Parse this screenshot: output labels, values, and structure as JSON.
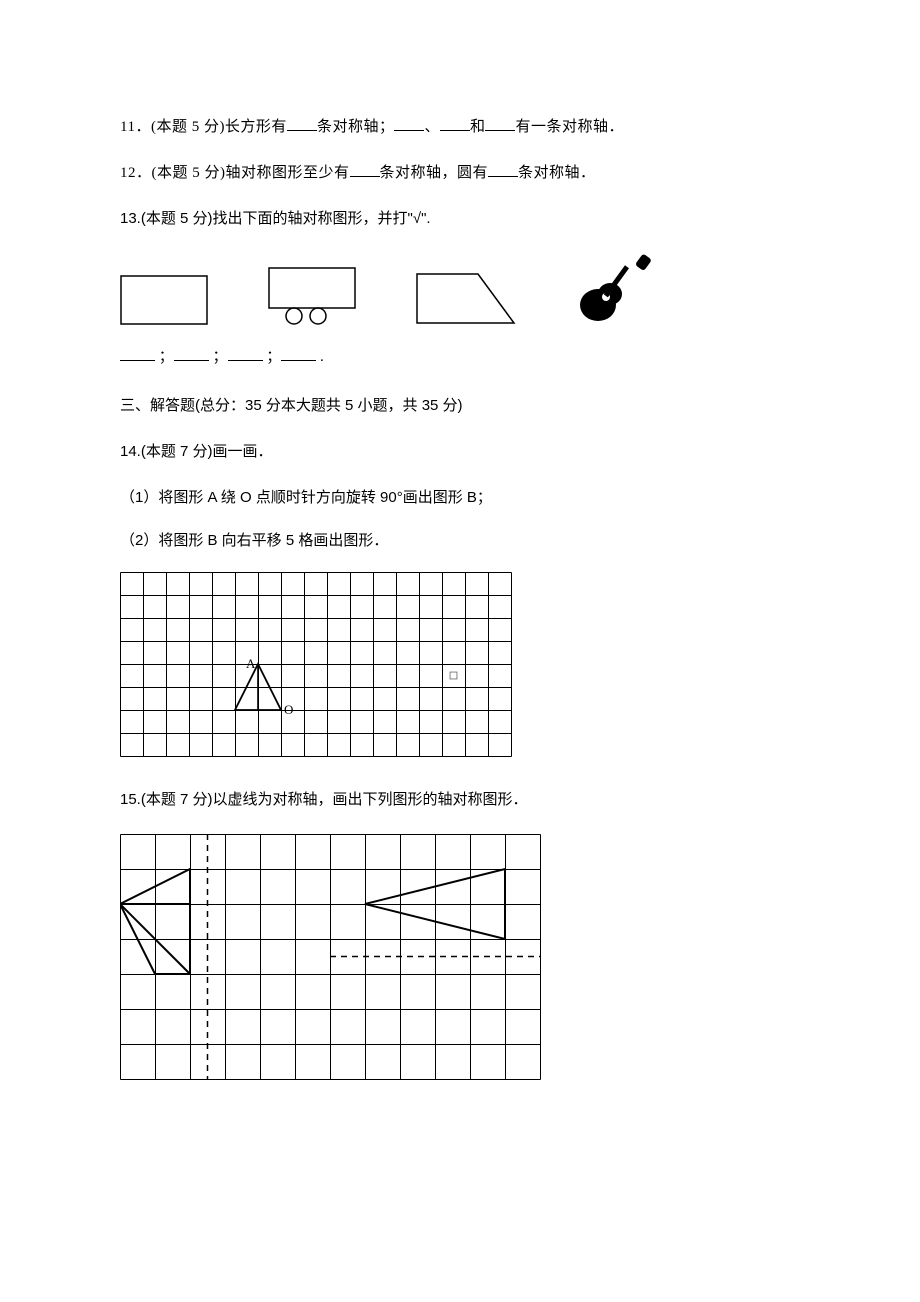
{
  "q11": {
    "prefix": "11．(本题 5 分)长方形有",
    "mid1": "条对称轴；",
    "mid2": "、",
    "mid3": "和",
    "suffix": "有一条对称轴．"
  },
  "q12": {
    "prefix": "12．(本题 5 分)轴对称图形至少有",
    "mid": "条对称轴，圆有",
    "suffix": "条对称轴．"
  },
  "q13": {
    "header": "13.(本题 5 分)找出下面的轴对称图形，并打\"√\".",
    "answers_sep": " ；",
    "answers_end": " ."
  },
  "section3": "三、解答题(总分：35 分本大题共 5 小题，共 35 分)",
  "q14": {
    "header": "14.(本题 7 分)画一画．",
    "sub1": "（1）将图形 A 绕 O 点顺时针方向旋转 90°画出图形 B；",
    "sub2": "（2）将图形 B 向右平移 5 格画出图形．",
    "label_a": "A",
    "label_o": "O",
    "grid": {
      "cols": 17,
      "rows": 8,
      "cell": 23
    }
  },
  "q15": {
    "header": "15.(本题 7 分)以虚线为对称轴，画出下列图形的轴对称图形．",
    "grid": {
      "cols": 12,
      "rows": 7,
      "cell": 35
    }
  },
  "colors": {
    "stroke": "#000000",
    "grid_stroke": "#000000"
  }
}
